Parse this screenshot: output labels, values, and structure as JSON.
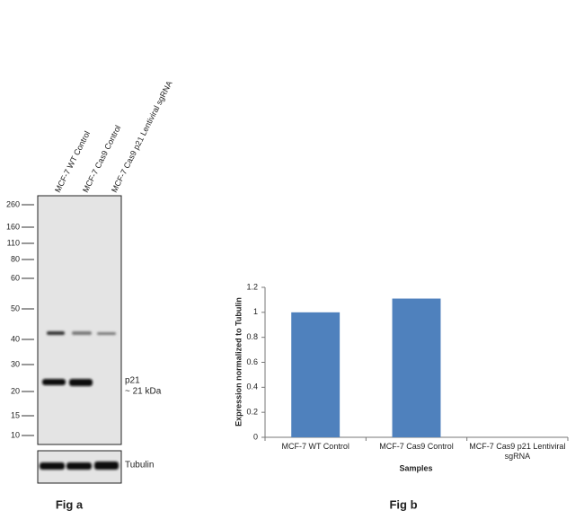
{
  "fig_a": {
    "lanes": [
      "MCF-7 WT Control",
      "MCF-7 Cas9 Control",
      "MCF-7 Cas9 p21  Lentiviral sgRNA"
    ],
    "markers": [
      "260",
      "160",
      "110",
      "80",
      "60",
      "50",
      "40",
      "30",
      "20",
      "15",
      "10"
    ],
    "band_label": "p21",
    "band_size": "~ 21 kDa",
    "loading_control": "Tubulin",
    "caption": "Fig a"
  },
  "chart_data": {
    "type": "bar",
    "categories": [
      "MCF-7 WT Control",
      "MCF-7 Cas9 Control",
      "MCF-7 Cas9 p21 Lentiviral sgRNA"
    ],
    "values": [
      1,
      1.11,
      0
    ],
    "color": "#4f81bd",
    "ylim": [
      0,
      1.2
    ],
    "yticks": [
      0,
      0.2,
      0.4,
      0.6,
      0.8,
      1,
      1.2
    ],
    "ylabel": "Expression  normalized to Tubulin",
    "xlabel": "Samples",
    "caption": "Fig b"
  }
}
